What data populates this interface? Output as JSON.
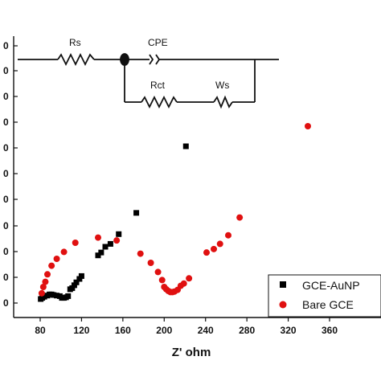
{
  "chart_data": {
    "type": "scatter",
    "title": "",
    "xlabel": "Z' ohm",
    "ylabel": "",
    "xlim": [
      70,
      360
    ],
    "ylim": [
      -5,
      310
    ],
    "x_ticks": [
      "80",
      "120",
      "160",
      "200",
      "240",
      "280",
      "320",
      "360"
    ],
    "y_tick_labels": [
      "0",
      "0",
      "0",
      "0",
      "0",
      "0",
      "0",
      "0",
      "0",
      "0",
      "0",
      "0"
    ],
    "grid": false,
    "legend_position": "bottom-right",
    "series": [
      {
        "name": "GCE-AuNP",
        "marker": "square",
        "color": "#000000",
        "points": [
          [
            80.5,
            12
          ],
          [
            82,
            14
          ],
          [
            84,
            16
          ],
          [
            87,
            18
          ],
          [
            89,
            20
          ],
          [
            91,
            20
          ],
          [
            93,
            19
          ],
          [
            96,
            18
          ],
          [
            99,
            17
          ],
          [
            101,
            14
          ],
          [
            103,
            14
          ],
          [
            105,
            15
          ],
          [
            107,
            17
          ],
          [
            109,
            29
          ],
          [
            111,
            31
          ],
          [
            113,
            36
          ],
          [
            115,
            41
          ],
          [
            118,
            47
          ],
          [
            120,
            52
          ],
          [
            136,
            88
          ],
          [
            139,
            93
          ],
          [
            143,
            103
          ],
          [
            148,
            108
          ],
          [
            156,
            125
          ],
          [
            173,
            162
          ],
          [
            221,
            278
          ]
        ]
      },
      {
        "name": "Bare GCE",
        "marker": "circle",
        "color": "#e01010",
        "points": [
          [
            81.5,
            22
          ],
          [
            83,
            33
          ],
          [
            85,
            42
          ],
          [
            87,
            55
          ],
          [
            91,
            70
          ],
          [
            96,
            82
          ],
          [
            103,
            94
          ],
          [
            114,
            110
          ],
          [
            136,
            119
          ],
          [
            154,
            114
          ],
          [
            177,
            91
          ],
          [
            187,
            75
          ],
          [
            194,
            59
          ],
          [
            198,
            45
          ],
          [
            200,
            33
          ],
          [
            202,
            29
          ],
          [
            204,
            26
          ],
          [
            206,
            24
          ],
          [
            208,
            24
          ],
          [
            210,
            25
          ],
          [
            213,
            28
          ],
          [
            216,
            35
          ],
          [
            219,
            39
          ],
          [
            224,
            48
          ],
          [
            241,
            93
          ],
          [
            248,
            99
          ],
          [
            254,
            108
          ],
          [
            262,
            123
          ],
          [
            273,
            154
          ],
          [
            339,
            313
          ]
        ]
      }
    ],
    "inset_circuit": {
      "labels": [
        "Rs",
        "CPE",
        "Rct",
        "Ws"
      ]
    }
  }
}
